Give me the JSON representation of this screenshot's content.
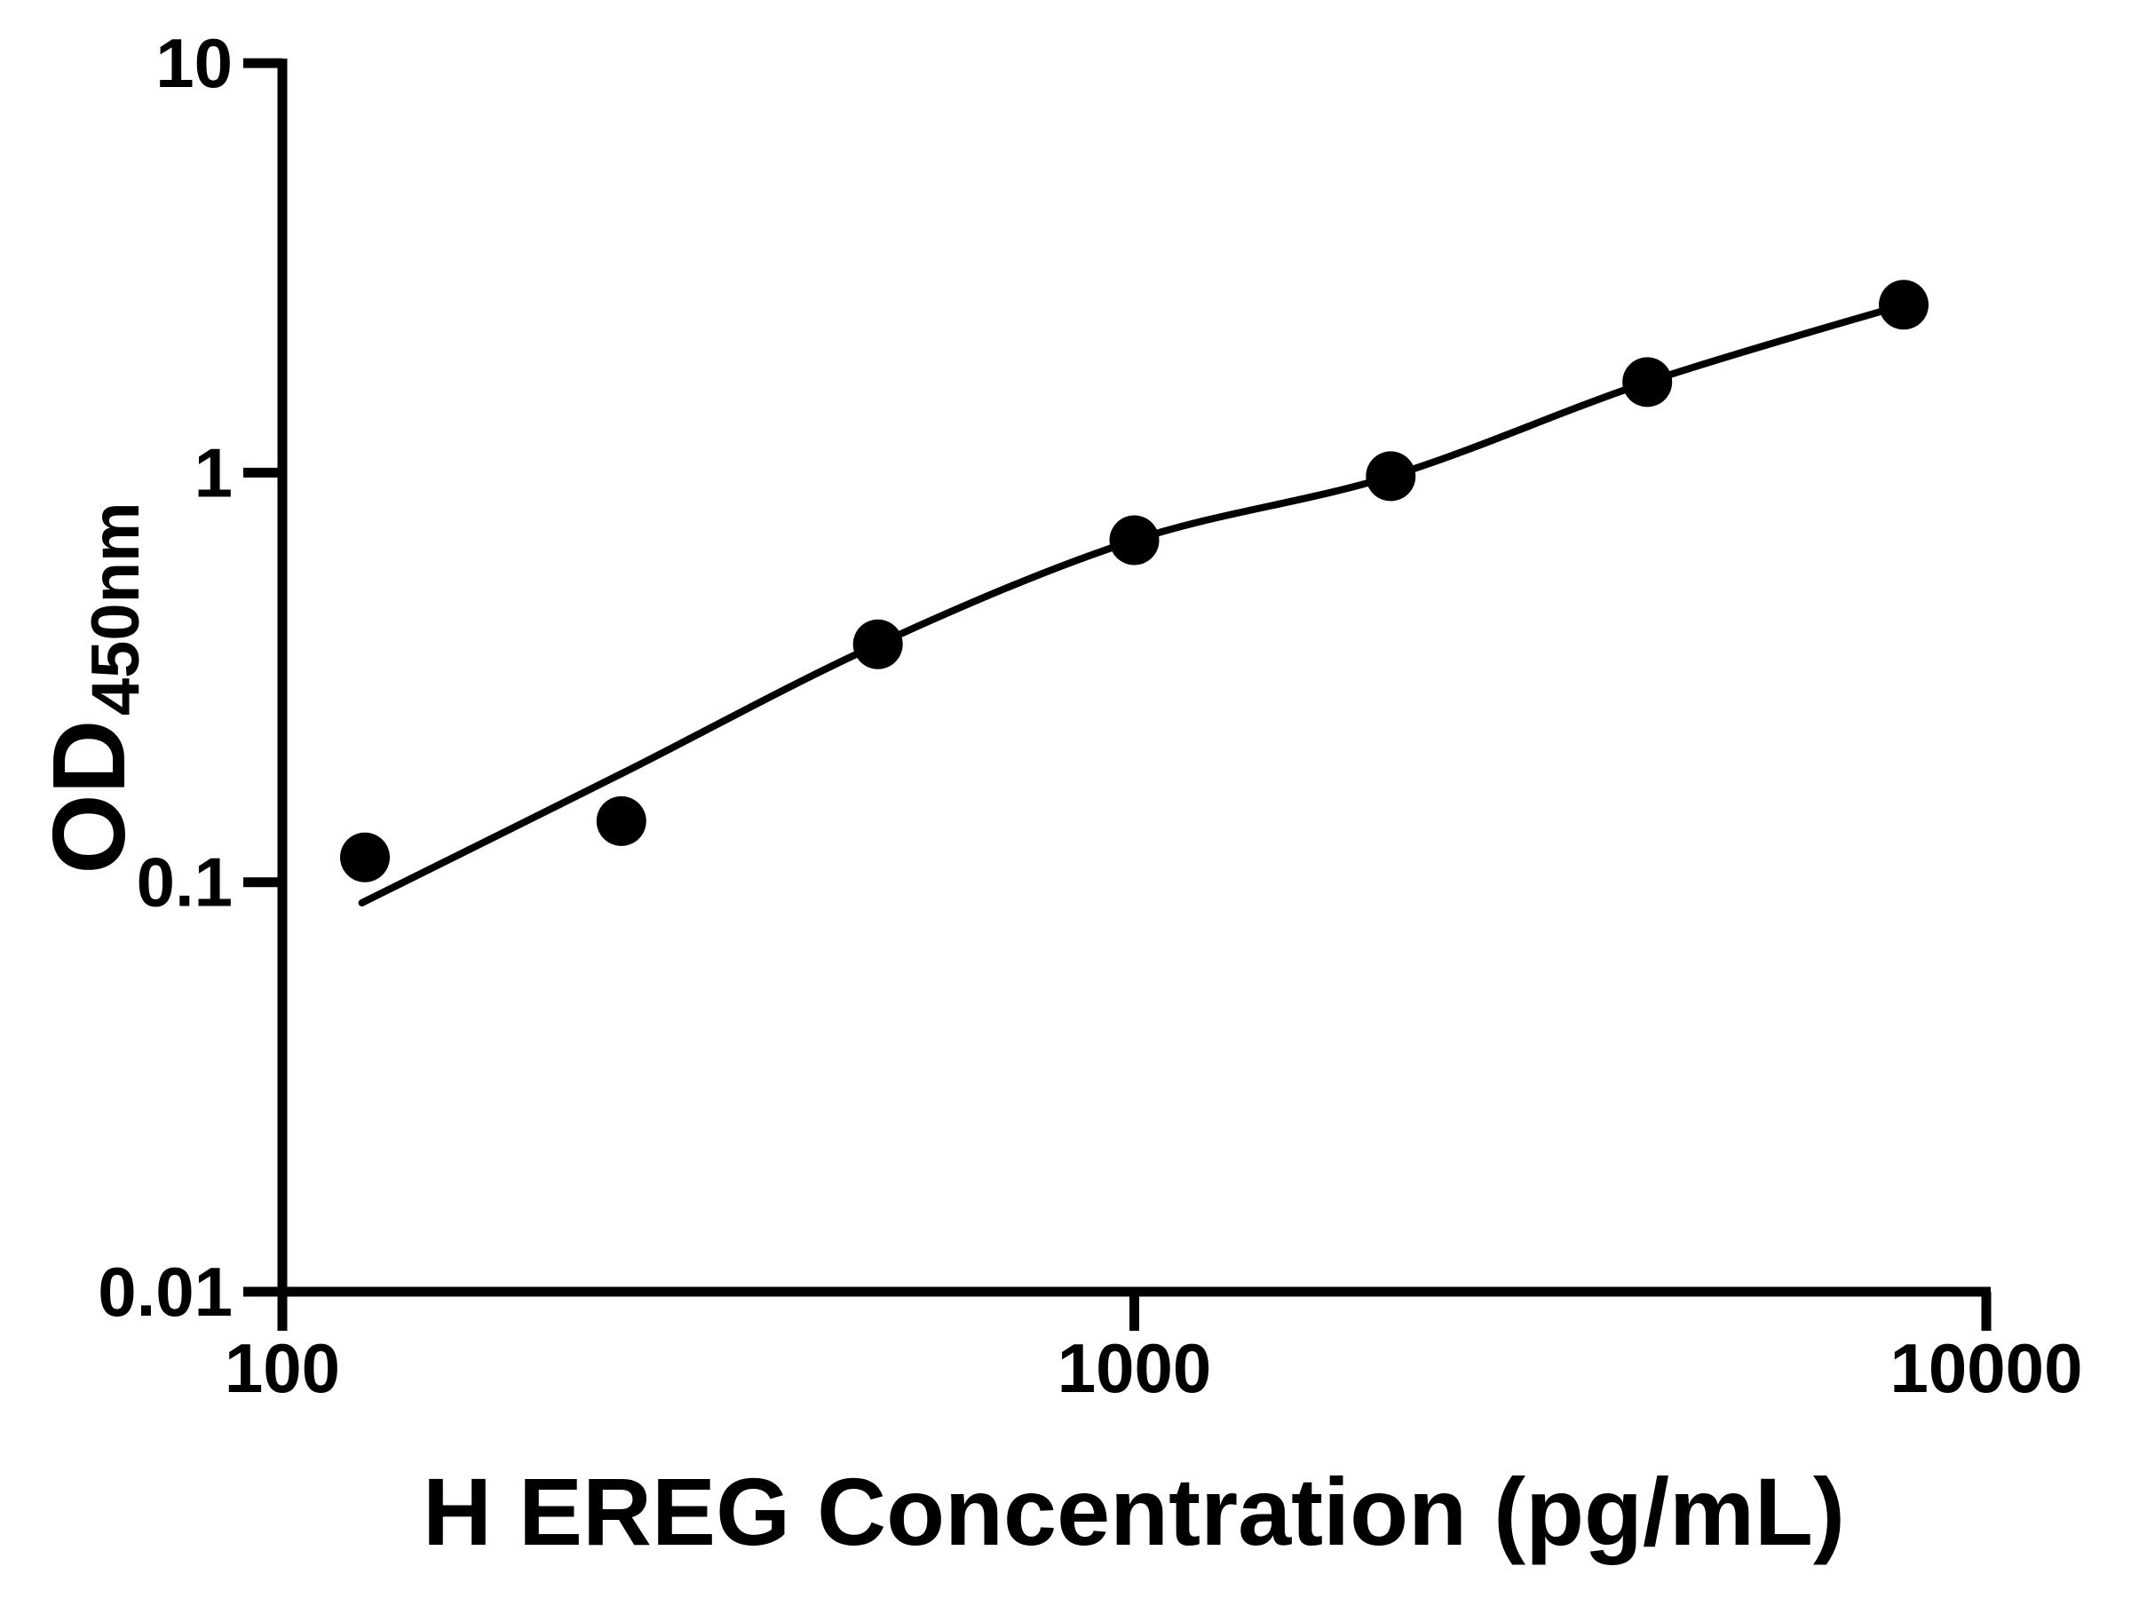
{
  "chart_data": {
    "type": "scatter",
    "title": "",
    "xlabel": "H EREG Concentration (pg/mL)",
    "ylabel": "OD",
    "ylabel_subscript": "450nm",
    "x_scale": "log",
    "y_scale": "log",
    "xlim": [
      100,
      10000
    ],
    "ylim": [
      0.01,
      10
    ],
    "x_ticks": [
      100,
      1000,
      10000
    ],
    "x_tick_labels": [
      "100",
      "1000",
      "10000"
    ],
    "y_ticks": [
      10,
      1,
      0.1,
      0.01
    ],
    "y_tick_labels": [
      "10",
      "1",
      "0.1",
      "0.01"
    ],
    "grid": false,
    "legend": null,
    "marker_color": "#000000",
    "line_color": "#000000",
    "series": [
      {
        "name": "standard curve data points",
        "x": [
          125,
          250,
          500,
          1000,
          2000,
          4000,
          8000
        ],
        "y": [
          0.115,
          0.141,
          0.381,
          0.684,
          0.98,
          1.664,
          2.57
        ]
      }
    ],
    "fit_curve": {
      "name": "fitted standard curve line",
      "x": [
        124,
        250,
        500,
        1000,
        2000,
        4000,
        8000
      ],
      "y": [
        0.089,
        0.184,
        0.381,
        0.684,
        0.98,
        1.664,
        2.57
      ]
    }
  }
}
